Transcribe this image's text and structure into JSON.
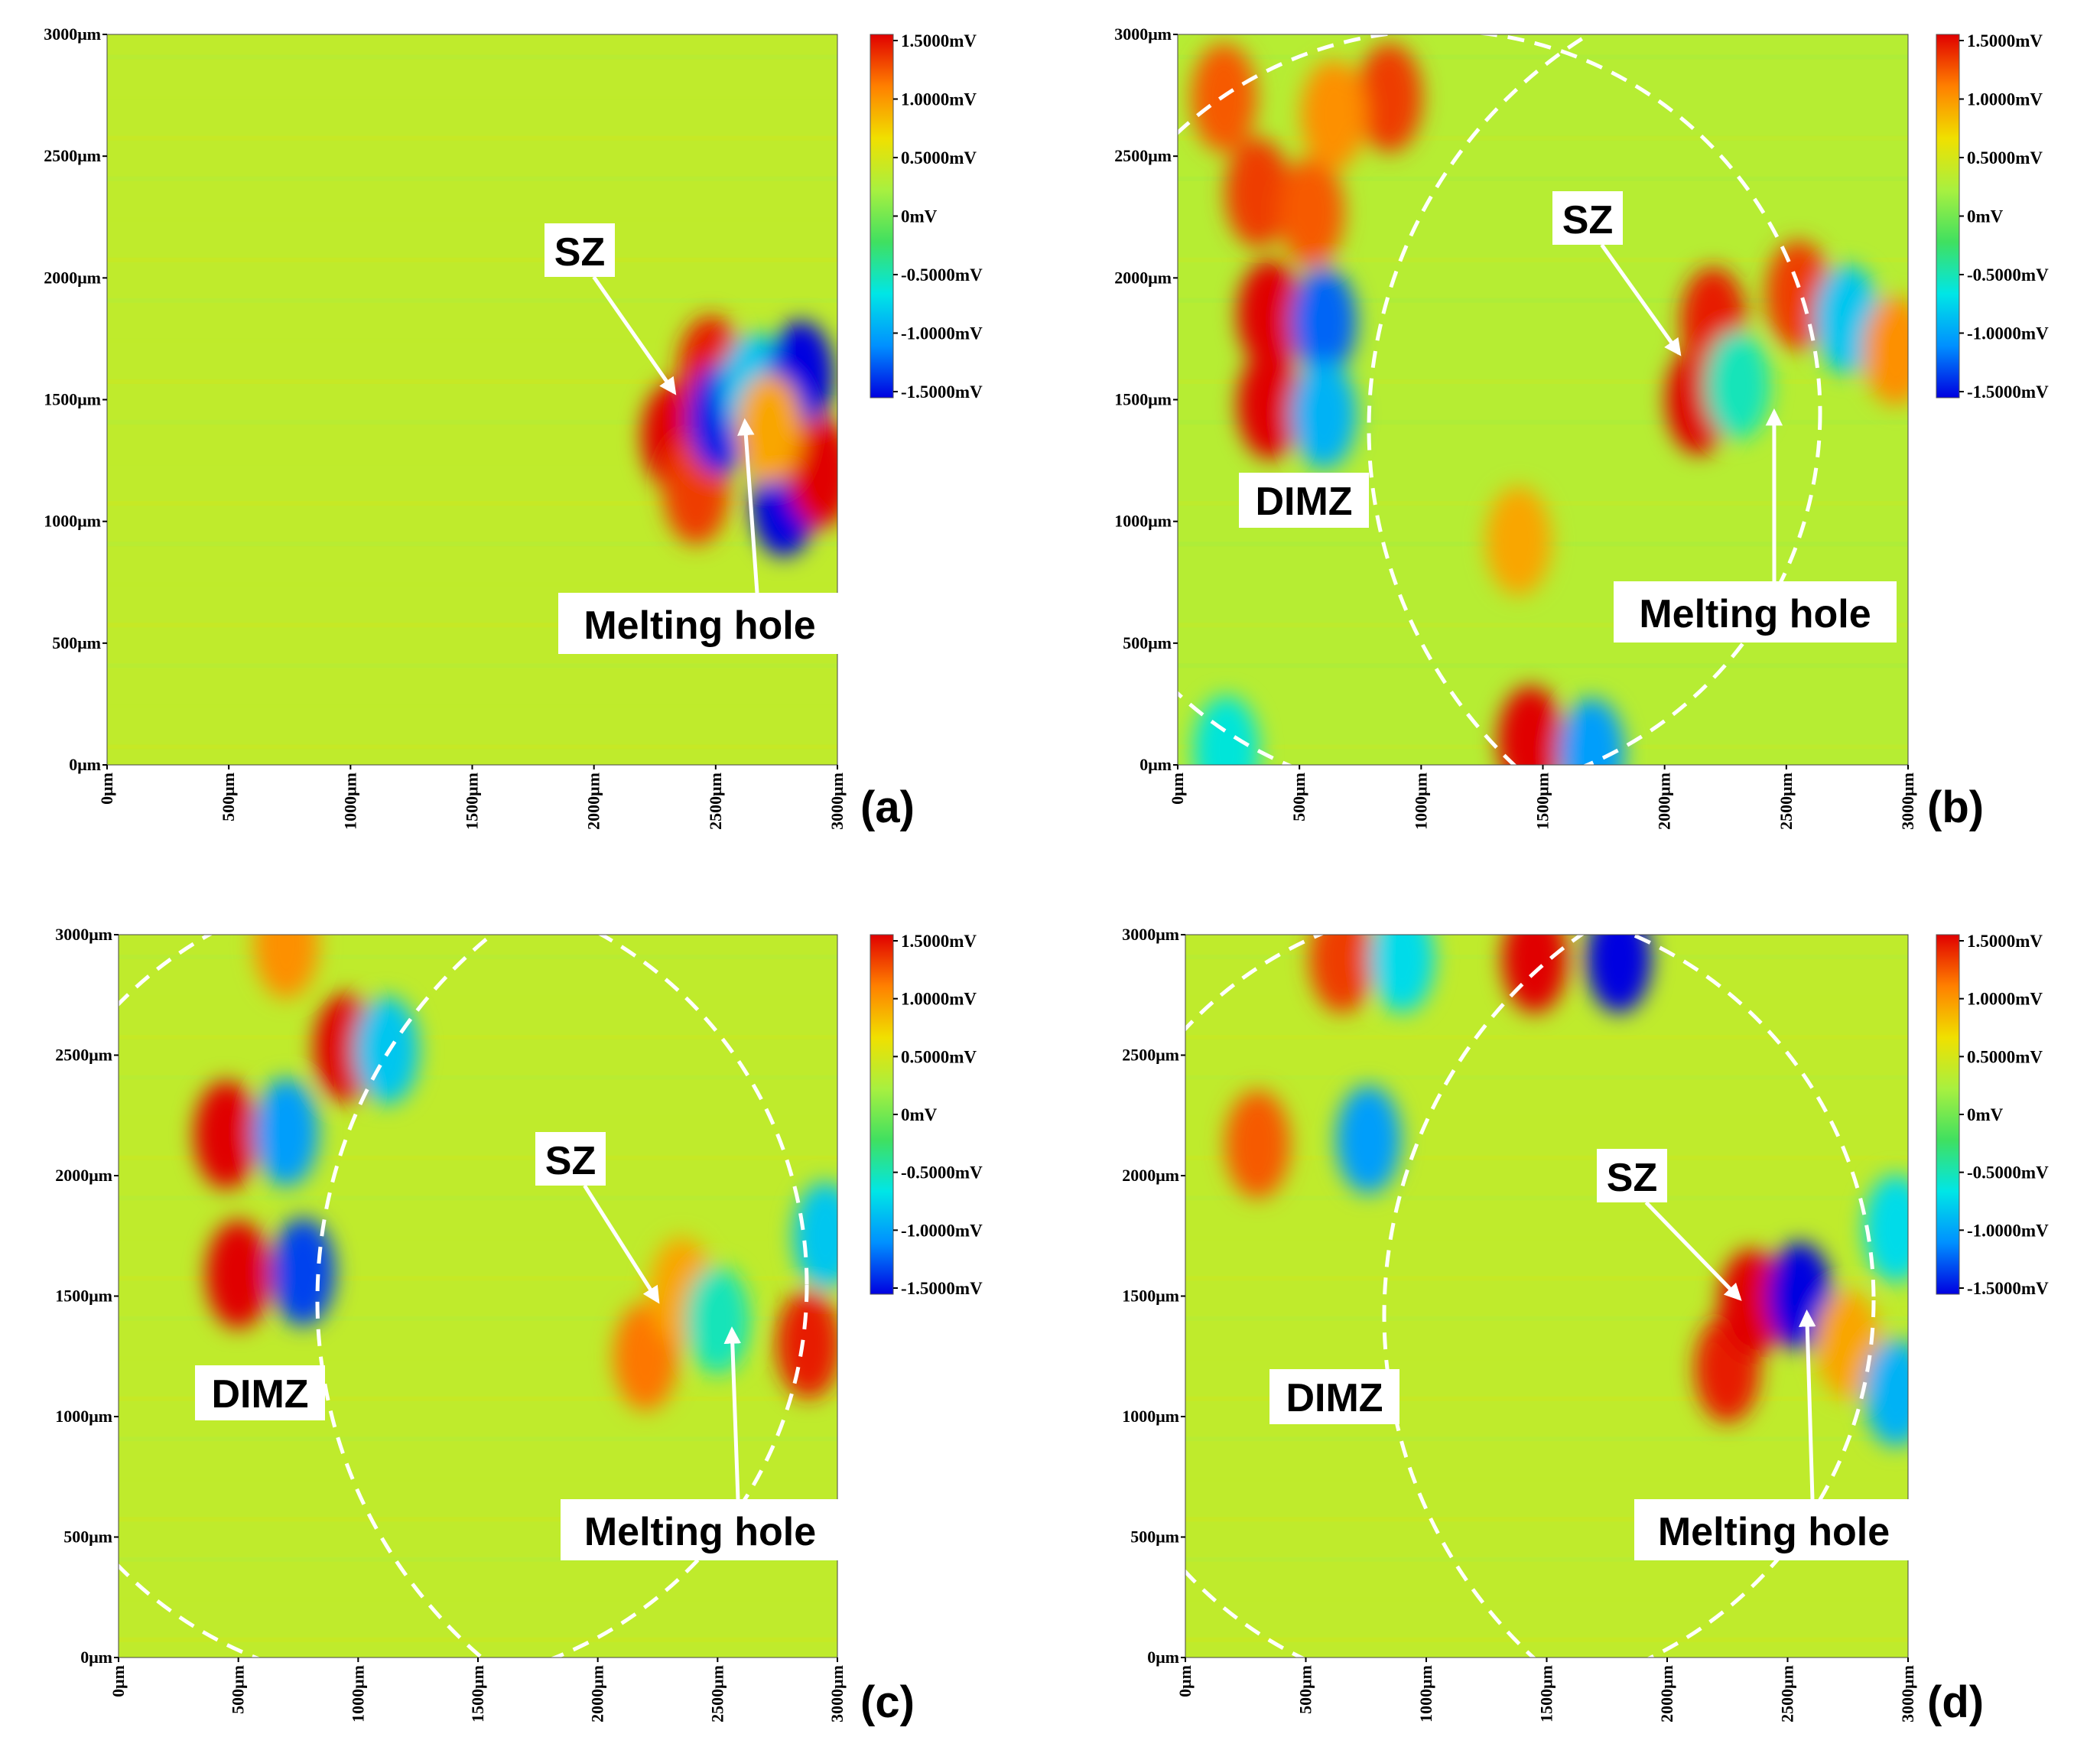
{
  "chart_data": [
    {
      "type": "heatmap",
      "panel_label": "(a)",
      "x_ticks": [
        "0μm",
        "500μm",
        "1000μm",
        "1500μm",
        "2000μm",
        "2500μm",
        "3000μm"
      ],
      "y_ticks": [
        "0μm",
        "500μm",
        "1000μm",
        "1500μm",
        "2000μm",
        "2500μm",
        "3000μm"
      ],
      "xlim": [
        0,
        3000
      ],
      "ylim": [
        0,
        3000
      ],
      "colorbar": {
        "ticks": [
          "1.5000mV",
          "1.0000mV",
          "0.5000mV",
          "0mV",
          "-0.5000mV",
          "-1.0000mV",
          "-1.5000mV"
        ],
        "range": [
          -1.5,
          1.5
        ],
        "unit": "mV"
      },
      "background_value": 0.35,
      "features": [
        {
          "x": 2330,
          "y": 1350,
          "value": 1.5
        },
        {
          "x": 2480,
          "y": 1620,
          "value": 1.4
        },
        {
          "x": 2420,
          "y": 1130,
          "value": 1.3
        },
        {
          "x": 2520,
          "y": 1420,
          "value": -1.4
        },
        {
          "x": 2660,
          "y": 1550,
          "value": -0.8
        },
        {
          "x": 2850,
          "y": 1600,
          "value": -1.5
        },
        {
          "x": 2780,
          "y": 1080,
          "value": -1.5
        },
        {
          "x": 2930,
          "y": 1200,
          "value": 1.5
        },
        {
          "x": 2720,
          "y": 1380,
          "value": 0.9
        }
      ],
      "annotations": [
        {
          "text": "SZ",
          "target": [
            2330,
            1530
          ]
        },
        {
          "text": "Melting hole",
          "target": [
            2620,
            1410
          ]
        }
      ]
    },
    {
      "type": "heatmap",
      "panel_label": "(b)",
      "x_ticks": [
        "0μm",
        "500μm",
        "1000μm",
        "1500μm",
        "2000μm",
        "2500μm",
        "3000μm"
      ],
      "y_ticks": [
        "0μm",
        "500μm",
        "1000μm",
        "1500μm",
        "2000μm",
        "2500μm",
        "3000μm"
      ],
      "xlim": [
        0,
        3000
      ],
      "ylim": [
        0,
        3000
      ],
      "colorbar": {
        "ticks": [
          "1.5000mV",
          "1.0000mV",
          "0.5000mV",
          "0mV",
          "-0.5000mV",
          "-1.0000mV",
          "-1.5000mV"
        ],
        "range": [
          -1.5,
          1.5
        ],
        "unit": "mV"
      },
      "background_value": 0.3,
      "features": [
        {
          "x": 380,
          "y": 1850,
          "value": 1.5
        },
        {
          "x": 380,
          "y": 1480,
          "value": 1.5
        },
        {
          "x": 600,
          "y": 1820,
          "value": -1.2
        },
        {
          "x": 600,
          "y": 1440,
          "value": -0.9
        },
        {
          "x": 190,
          "y": 2740,
          "value": 1.2
        },
        {
          "x": 870,
          "y": 2740,
          "value": 1.3
        },
        {
          "x": 330,
          "y": 2350,
          "value": 1.3
        },
        {
          "x": 550,
          "y": 2270,
          "value": 1.2
        },
        {
          "x": 640,
          "y": 2670,
          "value": 1.0
        },
        {
          "x": 2140,
          "y": 1500,
          "value": 1.5
        },
        {
          "x": 2200,
          "y": 1820,
          "value": 1.4
        },
        {
          "x": 2550,
          "y": 1930,
          "value": 1.3
        },
        {
          "x": 2750,
          "y": 1830,
          "value": -0.8
        },
        {
          "x": 2300,
          "y": 1560,
          "value": -0.5
        },
        {
          "x": 1450,
          "y": 100,
          "value": 1.5
        },
        {
          "x": 1700,
          "y": 50,
          "value": -1.0
        },
        {
          "x": 1400,
          "y": 920,
          "value": 0.9
        },
        {
          "x": 200,
          "y": 60,
          "value": -0.6
        },
        {
          "x": 2950,
          "y": 1700,
          "value": 1.0
        }
      ],
      "annotations": [
        {
          "text": "SZ",
          "target": [
            2060,
            1690
          ]
        },
        {
          "text": "Melting hole",
          "target": [
            2450,
            1450
          ]
        },
        {
          "text": "DIMZ"
        }
      ]
    },
    {
      "type": "heatmap",
      "panel_label": "(c)",
      "x_ticks": [
        "0μm",
        "500μm",
        "1000μm",
        "1500μm",
        "2000μm",
        "2500μm",
        "3000μm"
      ],
      "y_ticks": [
        "0μm",
        "500μm",
        "1000μm",
        "1500μm",
        "2000μm",
        "2500μm",
        "3000μm"
      ],
      "xlim": [
        0,
        3000
      ],
      "ylim": [
        0,
        3000
      ],
      "colorbar": {
        "ticks": [
          "1.5000mV",
          "1.0000mV",
          "0.5000mV",
          "0mV",
          "-0.5000mV",
          "-1.0000mV",
          "-1.5000mV"
        ],
        "range": [
          -1.5,
          1.5
        ],
        "unit": "mV"
      },
      "background_value": 0.35,
      "features": [
        {
          "x": 450,
          "y": 2170,
          "value": 1.5
        },
        {
          "x": 500,
          "y": 1590,
          "value": 1.5
        },
        {
          "x": 700,
          "y": 2180,
          "value": -1.0
        },
        {
          "x": 770,
          "y": 1600,
          "value": -1.3
        },
        {
          "x": 950,
          "y": 2530,
          "value": 1.5
        },
        {
          "x": 1120,
          "y": 2520,
          "value": -0.8
        },
        {
          "x": 700,
          "y": 2960,
          "value": 1.0
        },
        {
          "x": 2200,
          "y": 1250,
          "value": 1.1
        },
        {
          "x": 2350,
          "y": 1520,
          "value": 0.9
        },
        {
          "x": 2500,
          "y": 1400,
          "value": -0.5
        },
        {
          "x": 2880,
          "y": 1300,
          "value": 1.4
        },
        {
          "x": 2950,
          "y": 1750,
          "value": -0.8
        }
      ],
      "annotations": [
        {
          "text": "SZ",
          "target": [
            2250,
            1480
          ]
        },
        {
          "text": "Melting hole",
          "target": [
            2560,
            1360
          ]
        },
        {
          "text": "DIMZ"
        }
      ]
    },
    {
      "type": "heatmap",
      "panel_label": "(d)",
      "x_ticks": [
        "0μm",
        "500μm",
        "1000μm",
        "1500μm",
        "2000μm",
        "2500μm",
        "3000μm"
      ],
      "y_ticks": [
        "0μm",
        "500μm",
        "1000μm",
        "1500μm",
        "2000μm",
        "2500μm",
        "3000μm"
      ],
      "xlim": [
        0,
        3000
      ],
      "ylim": [
        0,
        3000
      ],
      "colorbar": {
        "ticks": [
          "1.5000mV",
          "1.0000mV",
          "0.5000mV",
          "0mV",
          "-0.5000mV",
          "-1.0000mV",
          "-1.5000mV"
        ],
        "range": [
          -1.5,
          1.5
        ],
        "unit": "mV"
      },
      "background_value": 0.35,
      "features": [
        {
          "x": 300,
          "y": 2130,
          "value": 1.2
        },
        {
          "x": 760,
          "y": 2150,
          "value": -1.0
        },
        {
          "x": 650,
          "y": 2900,
          "value": 1.3
        },
        {
          "x": 1450,
          "y": 2900,
          "value": 1.5
        },
        {
          "x": 900,
          "y": 2900,
          "value": -0.7
        },
        {
          "x": 1800,
          "y": 2900,
          "value": -1.5
        },
        {
          "x": 2250,
          "y": 1200,
          "value": 1.4
        },
        {
          "x": 2350,
          "y": 1470,
          "value": 1.5
        },
        {
          "x": 2550,
          "y": 1500,
          "value": -1.5
        },
        {
          "x": 2750,
          "y": 1300,
          "value": 0.9
        },
        {
          "x": 2950,
          "y": 1100,
          "value": -0.9
        },
        {
          "x": 2950,
          "y": 1780,
          "value": -0.7
        }
      ],
      "annotations": [
        {
          "text": "SZ",
          "target": [
            2300,
            1490
          ]
        },
        {
          "text": "Melting hole",
          "target": [
            2580,
            1430
          ]
        },
        {
          "text": "DIMZ"
        }
      ]
    }
  ],
  "colors": {
    "colormap": [
      "#0000e0",
      "#0090ff",
      "#00e6e6",
      "#40e060",
      "#a8f040",
      "#f0e000",
      "#ff8000",
      "#e00000"
    ],
    "dashed_curve": "#ffffff",
    "arrow": "#ffffff"
  }
}
